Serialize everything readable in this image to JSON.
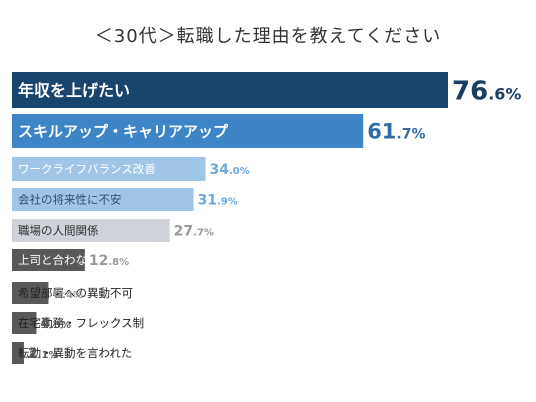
{
  "title": "＜30代＞転職した理由を教えてください",
  "chart_data": {
    "type": "bar",
    "orientation": "horizontal",
    "title": "＜30代＞転職した理由を教えてください",
    "unit": "%",
    "xlim": [
      0,
      100
    ],
    "grid": false,
    "legend": "none",
    "categories": [
      "年収を上げたい",
      "スキルアップ・キャリアアップ",
      "ワークライフバランス改善",
      "会社の将来性に不安",
      "職場の人間関係",
      "上司と合わない",
      "希望部署への異動不可",
      "在宅勤務・フレックス制",
      "転勤・異動を言われた"
    ],
    "values": [
      76.6,
      61.7,
      34.0,
      31.9,
      27.7,
      12.8,
      6.4,
      4.3,
      2.1
    ],
    "colors": {
      "top1_bar": "#17456e",
      "top2_bar": "#3d85c6",
      "blue_light_bar": "#9fc5e8",
      "gray_bar": "#cfd2d8",
      "dark_gray_bar": "#595959",
      "top1_value": "#1a3f63",
      "top2_value": "#2e6da8",
      "blue_light_value": "#6fa8dc",
      "gray_value": "#999999",
      "dark_value": "#595959"
    }
  }
}
